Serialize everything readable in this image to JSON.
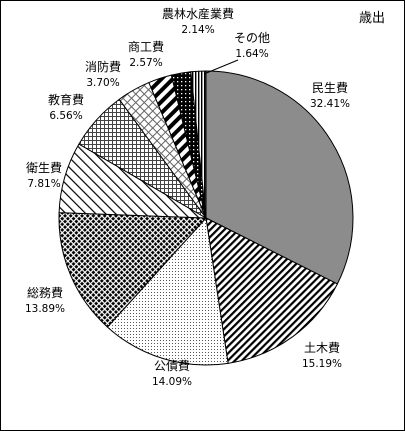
{
  "chart_data": {
    "type": "pie",
    "title": "歳出",
    "slices": [
      {
        "label": "民生費",
        "value": 32.41,
        "value_text": "32.41%",
        "pattern": "solid-gray"
      },
      {
        "label": "土木費",
        "value": 15.19,
        "value_text": "15.19%",
        "pattern": "diagonal-dense"
      },
      {
        "label": "公債費",
        "value": 14.09,
        "value_text": "14.09%",
        "pattern": "dots-fine"
      },
      {
        "label": "総務費",
        "value": 13.89,
        "value_text": "13.89%",
        "pattern": "cross-dark"
      },
      {
        "label": "衛生費",
        "value": 7.81,
        "value_text": "7.81%",
        "pattern": "diagonal-sparse"
      },
      {
        "label": "教育費",
        "value": 6.56,
        "value_text": "6.56%",
        "pattern": "grid"
      },
      {
        "label": "消防費",
        "value": 3.7,
        "value_text": "3.70%",
        "pattern": "diamond-light"
      },
      {
        "label": "商工費",
        "value": 2.57,
        "value_text": "2.57%",
        "pattern": "diagonal-bold"
      },
      {
        "label": "農林水産業費",
        "value": 2.14,
        "value_text": "2.14%",
        "pattern": "dots-dark"
      },
      {
        "label": "その他",
        "value": 1.64,
        "value_text": "1.64%",
        "pattern": "vertical-lines"
      }
    ]
  }
}
